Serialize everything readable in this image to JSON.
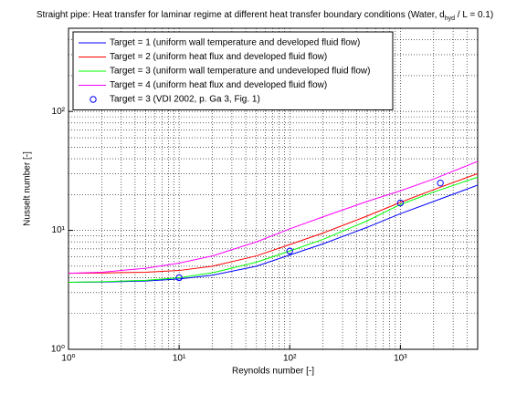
{
  "chart_data": {
    "type": "line",
    "title": "Straight pipe: Heat transfer for laminar regime at different heat transfer boundary conditions (Water, d",
    "title_subscript": "hyd",
    "title_end": " / L = 0.1)",
    "xlabel": "Reynolds number [-]",
    "ylabel": "Nusselt number [-]",
    "xscale": "log",
    "yscale": "log",
    "grid": true,
    "legend": "upper left",
    "xlim": [
      1,
      5000
    ],
    "ylim": [
      1,
      500
    ],
    "xticks": [
      {
        "value": 1,
        "label": "10⁰"
      },
      {
        "value": 10,
        "label": "10¹"
      },
      {
        "value": 100,
        "label": "10²"
      },
      {
        "value": 1000,
        "label": "10³"
      }
    ],
    "yticks": [
      {
        "value": 1,
        "label": "10⁰"
      },
      {
        "value": 10,
        "label": "10¹"
      },
      {
        "value": 100,
        "label": "10²"
      }
    ],
    "x": [
      1,
      2,
      5,
      10,
      20,
      50,
      100,
      200,
      500,
      1000,
      2000,
      5000
    ],
    "series": [
      {
        "name": "Target = 1 (uniform wall temperature and developed fluid flow)",
        "color": "#0000ff",
        "values": [
          3.66,
          3.68,
          3.75,
          3.9,
          4.2,
          5.0,
          6.2,
          7.7,
          10.6,
          13.8,
          17.5,
          24
        ]
      },
      {
        "name": "Target = 2 (uniform heat flux and developed fluid flow)",
        "color": "#ff0000",
        "values": [
          4.36,
          4.38,
          4.45,
          4.6,
          5.0,
          6.1,
          7.6,
          9.5,
          13.2,
          17.2,
          22,
          30
        ]
      },
      {
        "name": "Target = 3 (uniform wall temperature and undeveloped fluid flow)",
        "color": "#00ff00",
        "values": [
          3.66,
          3.7,
          3.8,
          4.0,
          4.4,
          5.4,
          6.7,
          8.4,
          12,
          16.5,
          21,
          28
        ]
      },
      {
        "name": "Target = 4 (uniform heat flux and developed fluid flow)",
        "color": "#ff00ff",
        "values": [
          4.36,
          4.45,
          4.8,
          5.3,
          6.1,
          8.0,
          10.3,
          13,
          17.5,
          21.5,
          27,
          38
        ]
      },
      {
        "name": "Target = 3 (VDI 2002, p. Ga 3, Fig. 1)",
        "color": "#0000ff",
        "marker": "o",
        "x": [
          10,
          100,
          1000,
          2300
        ],
        "values": [
          4.0,
          6.7,
          17,
          25
        ]
      }
    ]
  }
}
